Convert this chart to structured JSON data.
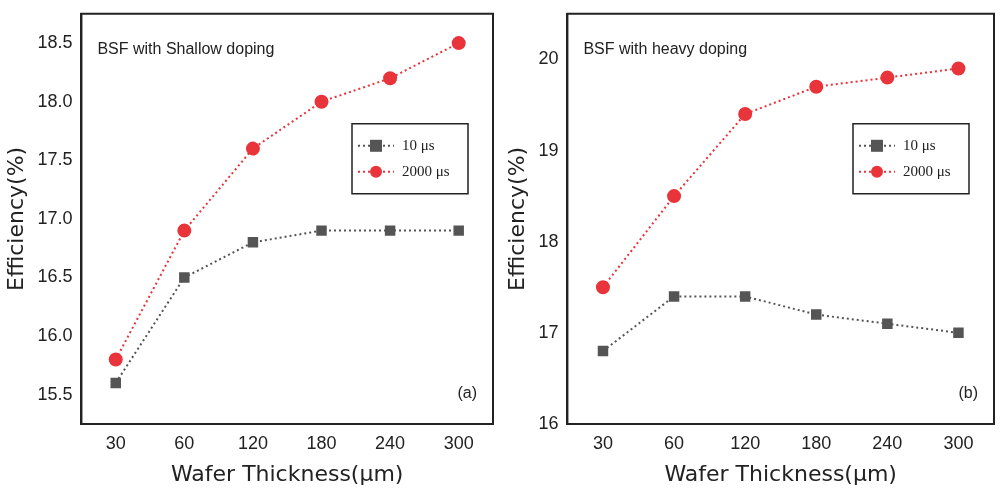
{
  "chart_data": [
    {
      "type": "line",
      "xlabel": "Wafer Thickness(μm)",
      "ylabel": "Efficiency(%)",
      "categories": [
        "30",
        "60",
        "120",
        "180",
        "240",
        "300"
      ],
      "series": [
        {
          "name": "10 μs",
          "color": "#555555",
          "marker": "square",
          "values": [
            15.6,
            16.5,
            16.8,
            16.9,
            16.9,
            16.9
          ]
        },
        {
          "name": "2000 μs",
          "color": "#e8343a",
          "marker": "circle",
          "values": [
            15.8,
            16.9,
            17.6,
            18.0,
            18.2,
            18.5
          ]
        }
      ],
      "ylim": [
        15.25,
        18.75
      ],
      "yticks": [
        15.5,
        {
          "value": 16,
          "label": "16.0"
        },
        16.5,
        {
          "value": 17,
          "label": "17.0"
        },
        17.5,
        {
          "value": 18,
          "label": "18.0"
        },
        18.5
      ],
      "line_style": "dotted",
      "grid": false,
      "legend": "top right",
      "annotations": [
        "BSF with Shallow doping",
        "(a)"
      ]
    },
    {
      "type": "line",
      "xlabel": "Wafer Thickness(μm)",
      "ylabel": "Efficiency(%)",
      "categories": [
        "30",
        "60",
        "120",
        "180",
        "240",
        "300"
      ],
      "series": [
        {
          "name": "10 μs",
          "color": "#555555",
          "marker": "square",
          "values": [
            16.8,
            17.4,
            17.4,
            17.2,
            17.1,
            17.0
          ]
        },
        {
          "name": "2000 μs",
          "color": "#e8343a",
          "marker": "circle",
          "values": [
            17.5,
            18.5,
            19.4,
            19.7,
            19.8,
            19.9
          ]
        }
      ],
      "ylim": [
        16,
        20.5
      ],
      "yticks": [
        16,
        17,
        18,
        19,
        20
      ],
      "line_style": "dotted",
      "grid": false,
      "legend": "top right",
      "annotations": [
        "BSF with heavy doping",
        "(b)"
      ]
    }
  ]
}
